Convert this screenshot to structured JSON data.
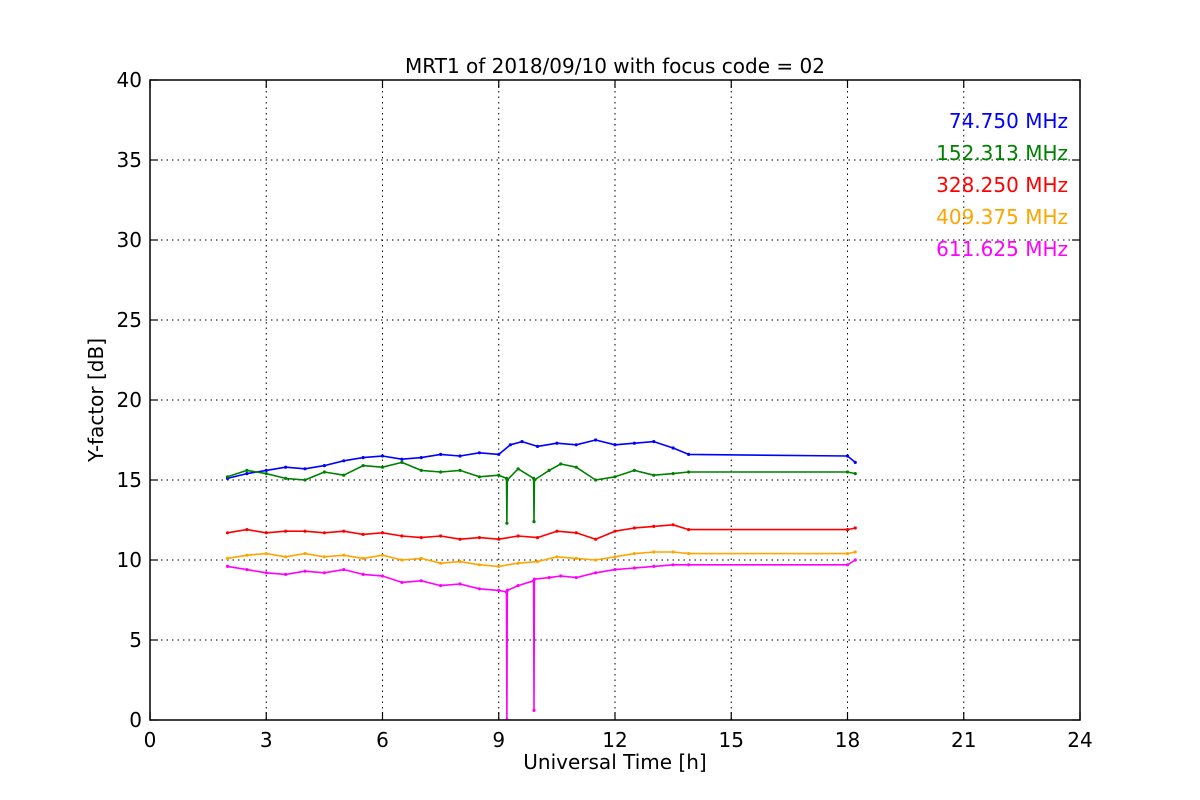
{
  "chart_data": {
    "type": "line",
    "title": "MRT1 of 2018/09/10 with focus code = 02",
    "xlabel": "Universal Time [h]",
    "ylabel": "Y-factor [dB]",
    "xlim": [
      0,
      24
    ],
    "ylim": [
      0,
      40
    ],
    "xticks": [
      0,
      3,
      6,
      9,
      12,
      15,
      18,
      21,
      24
    ],
    "yticks": [
      0,
      5,
      10,
      15,
      20,
      25,
      30,
      35,
      40
    ],
    "grid": true,
    "legend_position": "top-right",
    "series": [
      {
        "name": "74.750 MHz",
        "color": "#0000ff",
        "x": [
          2.0,
          2.5,
          3.0,
          3.5,
          4.0,
          4.5,
          5.0,
          5.5,
          6.0,
          6.5,
          7.0,
          7.5,
          8.0,
          8.5,
          9.0,
          9.3,
          9.6,
          10.0,
          10.5,
          11.0,
          11.5,
          12.0,
          12.5,
          13.0,
          13.5,
          13.9,
          18.0,
          18.2
        ],
        "y": [
          15.1,
          15.4,
          15.6,
          15.8,
          15.7,
          15.9,
          16.2,
          16.4,
          16.5,
          16.3,
          16.4,
          16.6,
          16.5,
          16.7,
          16.6,
          17.2,
          17.4,
          17.1,
          17.3,
          17.2,
          17.5,
          17.2,
          17.3,
          17.4,
          17.0,
          16.6,
          16.5,
          16.1
        ]
      },
      {
        "name": "152.313 MHz",
        "color": "#008000",
        "x": [
          2.0,
          2.5,
          3.0,
          3.5,
          4.0,
          4.5,
          5.0,
          5.5,
          6.0,
          6.5,
          7.0,
          7.5,
          8.0,
          8.5,
          9.0,
          9.2,
          9.21,
          9.22,
          9.5,
          9.9,
          9.91,
          9.92,
          10.3,
          10.6,
          11.0,
          11.5,
          12.0,
          12.5,
          13.0,
          13.5,
          13.9,
          18.0,
          18.2
        ],
        "y": [
          15.2,
          15.6,
          15.4,
          15.1,
          15.0,
          15.5,
          15.3,
          15.9,
          15.8,
          16.1,
          15.6,
          15.5,
          15.6,
          15.2,
          15.3,
          15.1,
          12.3,
          15.0,
          15.7,
          15.1,
          12.4,
          15.0,
          15.6,
          16.0,
          15.8,
          15.0,
          15.2,
          15.6,
          15.3,
          15.4,
          15.5,
          15.5,
          15.4
        ]
      },
      {
        "name": "328.250 MHz",
        "color": "#ff0000",
        "x": [
          2.0,
          2.5,
          3.0,
          3.5,
          4.0,
          4.5,
          5.0,
          5.5,
          6.0,
          6.5,
          7.0,
          7.5,
          8.0,
          8.5,
          9.0,
          9.5,
          10.0,
          10.5,
          11.0,
          11.5,
          12.0,
          12.5,
          13.0,
          13.5,
          13.9,
          18.0,
          18.2
        ],
        "y": [
          11.7,
          11.9,
          11.7,
          11.8,
          11.8,
          11.7,
          11.8,
          11.6,
          11.7,
          11.5,
          11.4,
          11.5,
          11.3,
          11.4,
          11.3,
          11.5,
          11.4,
          11.8,
          11.7,
          11.3,
          11.8,
          12.0,
          12.1,
          12.2,
          11.9,
          11.9,
          12.0
        ]
      },
      {
        "name": "409.375 MHz",
        "color": "#ffa500",
        "x": [
          2.0,
          2.5,
          3.0,
          3.5,
          4.0,
          4.5,
          5.0,
          5.5,
          6.0,
          6.5,
          7.0,
          7.5,
          8.0,
          8.5,
          9.0,
          9.5,
          10.0,
          10.5,
          11.0,
          11.5,
          12.0,
          12.5,
          13.0,
          13.5,
          13.9,
          18.0,
          18.2
        ],
        "y": [
          10.1,
          10.3,
          10.4,
          10.2,
          10.4,
          10.2,
          10.3,
          10.1,
          10.3,
          10.0,
          10.1,
          9.8,
          9.9,
          9.7,
          9.6,
          9.8,
          9.9,
          10.2,
          10.1,
          10.0,
          10.2,
          10.4,
          10.5,
          10.5,
          10.4,
          10.4,
          10.5
        ]
      },
      {
        "name": "611.625 MHz",
        "color": "#ff00ff",
        "x": [
          2.0,
          2.5,
          3.0,
          3.5,
          4.0,
          4.5,
          5.0,
          5.5,
          6.0,
          6.5,
          7.0,
          7.5,
          8.0,
          8.5,
          9.0,
          9.2,
          9.21,
          9.22,
          9.5,
          9.9,
          9.91,
          9.92,
          10.3,
          10.6,
          11.0,
          11.5,
          12.0,
          12.5,
          13.0,
          13.5,
          13.9,
          18.0,
          18.2
        ],
        "y": [
          9.6,
          9.4,
          9.2,
          9.1,
          9.3,
          9.2,
          9.4,
          9.1,
          9.0,
          8.6,
          8.7,
          8.4,
          8.5,
          8.2,
          8.1,
          8.0,
          0.0,
          8.1,
          8.4,
          8.7,
          0.6,
          8.8,
          8.9,
          9.0,
          8.9,
          9.2,
          9.4,
          9.5,
          9.6,
          9.7,
          9.7,
          9.7,
          10.0
        ]
      }
    ]
  }
}
